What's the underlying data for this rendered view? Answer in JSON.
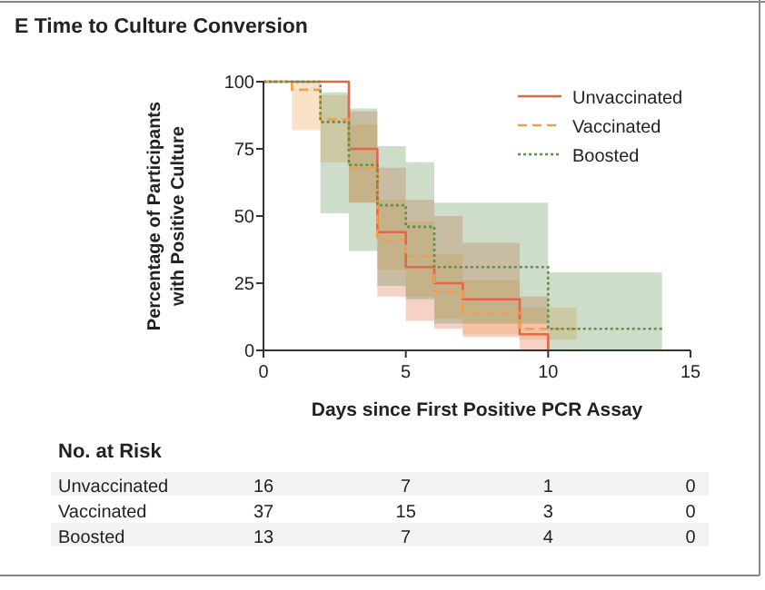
{
  "chart_data": {
    "type": "step",
    "title": "E  Time to Culture Conversion",
    "xlabel": "Days since First Positive PCR Assay",
    "ylabel": "Percentage of Participants\nwith Positive Culture",
    "xlim": [
      0,
      15
    ],
    "xticks": [
      0,
      5,
      10,
      15
    ],
    "ylim": [
      0,
      100
    ],
    "yticks": [
      0,
      25,
      50,
      75,
      100
    ],
    "grid": false,
    "legend": "top right",
    "series": [
      {
        "name": "Unvaccinated",
        "color": "#e2674a",
        "line_style": "solid",
        "x": [
          0,
          3,
          4,
          5,
          6,
          7,
          9,
          10
        ],
        "values": [
          100,
          75,
          44,
          31,
          25,
          19,
          6,
          0
        ],
        "lower": [
          100,
          55,
          20,
          11,
          8,
          5,
          0,
          0
        ],
        "upper": [
          100,
          89,
          68,
          56,
          50,
          40,
          20,
          0
        ]
      },
      {
        "name": "Vaccinated",
        "color": "#f0a04b",
        "line_style": "dashed",
        "x": [
          0,
          1,
          2,
          3,
          4,
          5,
          6,
          7,
          9,
          11
        ],
        "values": [
          100,
          97,
          86,
          68,
          41,
          35,
          22,
          14,
          8,
          8
        ],
        "lower": [
          100,
          82,
          70,
          55,
          30,
          20,
          12,
          6,
          4,
          4
        ],
        "upper": [
          100,
          100,
          95,
          84,
          56,
          48,
          36,
          26,
          16,
          16
        ]
      },
      {
        "name": "Boosted",
        "color": "#5e8f4e",
        "line_style": "dotted",
        "x": [
          0,
          2,
          3,
          4,
          5,
          6,
          10,
          14
        ],
        "values": [
          100,
          85,
          69,
          54,
          46,
          31,
          8,
          8
        ],
        "lower": [
          100,
          51,
          37,
          24,
          19,
          10,
          0,
          0
        ],
        "upper": [
          100,
          96,
          90,
          76,
          70,
          55,
          29,
          29
        ]
      }
    ],
    "annotations": [
      "No. at Risk",
      "16",
      "7",
      "1",
      "0",
      "37",
      "15",
      "3",
      "0",
      "13",
      "7",
      "4",
      "0"
    ]
  }
}
